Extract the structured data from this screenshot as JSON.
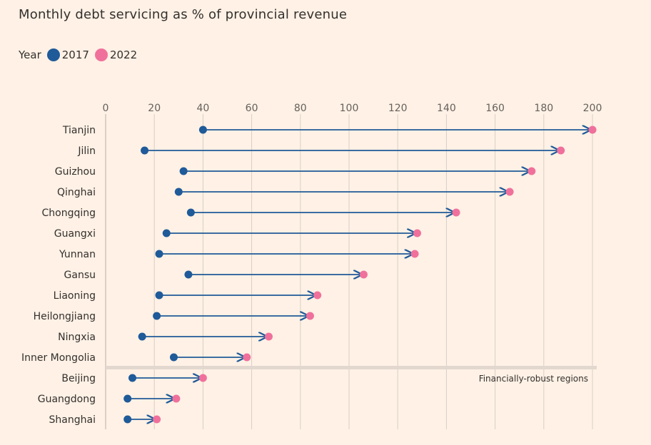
{
  "chart_data": {
    "type": "dumbbell",
    "title": "Monthly debt servicing as % of provincial revenue",
    "legend": {
      "title": "Year",
      "placement": "top-left",
      "items": [
        {
          "label": "2017",
          "color": "#1f5a99"
        },
        {
          "label": "2022",
          "color": "#f0709c"
        }
      ]
    },
    "x_ticks": [
      0,
      20,
      40,
      60,
      80,
      100,
      120,
      140,
      160,
      180,
      200
    ],
    "xlim": [
      0,
      200
    ],
    "grid": true,
    "categories": [
      "Tianjin",
      "Jilin",
      "Guizhou",
      "Qinghai",
      "Chongqing",
      "Guangxi",
      "Yunnan",
      "Gansu",
      "Liaoning",
      "Heilongjiang",
      "Ningxia",
      "Inner Mongolia",
      "Beijing",
      "Guangdong",
      "Shanghai"
    ],
    "series": [
      {
        "name": "2017",
        "values": [
          40,
          16,
          32,
          30,
          35,
          25,
          22,
          34,
          22,
          21,
          15,
          28,
          11,
          9,
          9
        ]
      },
      {
        "name": "2022",
        "values": [
          200,
          187,
          175,
          166,
          144,
          128,
          127,
          106,
          87,
          84,
          67,
          58,
          40,
          29,
          21
        ]
      }
    ],
    "separator_after": "Inner Mongolia",
    "annotation": "Financially-robust regions",
    "colors": {
      "series_2017": "#1f5a99",
      "series_2022": "#f0709c",
      "arrow": "#1f5a99",
      "grid": "#d9cfc6",
      "separator": "#e3d8cf"
    }
  }
}
